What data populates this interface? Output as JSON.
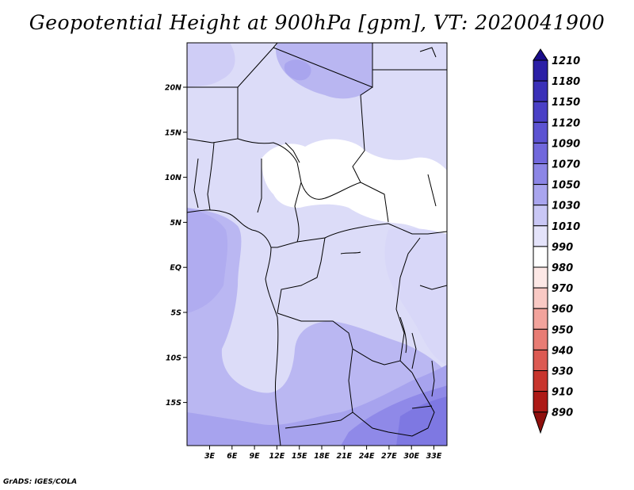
{
  "title": "Geopotential Height at 900hPa [gpm], VT: 2020041900",
  "credit": "GrADS: IGES/COLA",
  "map": {
    "variable": "Geopotential Height",
    "level": "900hPa",
    "units": "gpm",
    "valid_time": "2020041900",
    "x_ticks": [
      "3E",
      "6E",
      "9E",
      "12E",
      "15E",
      "18E",
      "21E",
      "24E",
      "27E",
      "30E",
      "33E"
    ],
    "y_ticks": [
      "20N",
      "15N",
      "10N",
      "5N",
      "EQ",
      "5S",
      "10S",
      "15S"
    ],
    "colorbar": {
      "labels": [
        "1210",
        "1180",
        "1150",
        "1120",
        "1090",
        "1070",
        "1050",
        "1030",
        "1010",
        "990",
        "980",
        "970",
        "960",
        "950",
        "940",
        "930",
        "910",
        "890"
      ],
      "colors": [
        "#1a0d8a",
        "#2b1fa6",
        "#3a30b8",
        "#4a40c6",
        "#5c53d2",
        "#7168dc",
        "#8c86e6",
        "#a9a5ee",
        "#c9c7f5",
        "#e4e3fa",
        "#ffffff",
        "#fde8e6",
        "#f9c9c4",
        "#f2a39c",
        "#e87c74",
        "#dc5a52",
        "#c8352d",
        "#ad1a16",
        "#8f0f0d"
      ]
    }
  }
}
